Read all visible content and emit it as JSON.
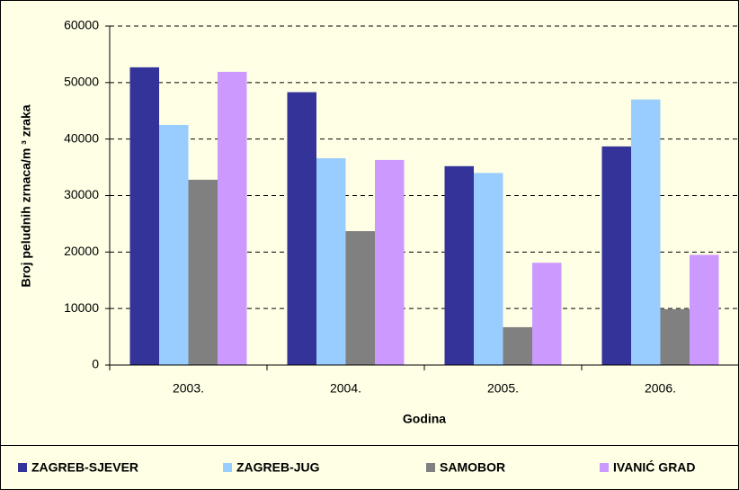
{
  "chart_data": {
    "type": "bar",
    "categories": [
      "2003.",
      "2004.",
      "2005.",
      "2006."
    ],
    "series": [
      {
        "name": "ZAGREB-SJEVER",
        "color": "#333399",
        "values": [
          52700,
          48300,
          35200,
          38700
        ]
      },
      {
        "name": "ZAGREB-JUG",
        "color": "#99CCFF",
        "values": [
          42500,
          36600,
          34000,
          47000
        ]
      },
      {
        "name": "SAMOBOR",
        "color": "#808080",
        "values": [
          32800,
          23700,
          6700,
          9900
        ]
      },
      {
        "name": "IVANIĆ GRAD",
        "color": "#CC99FF",
        "values": [
          51900,
          36300,
          18100,
          19500
        ]
      }
    ],
    "x_label": "Godina",
    "y_label": "Broj peludnih zrnaca/m ³ zraka",
    "ylim": [
      0,
      60000
    ],
    "yticks": [
      0,
      10000,
      20000,
      30000,
      40000,
      50000,
      60000
    ],
    "grid": true,
    "legend": "bottom"
  }
}
